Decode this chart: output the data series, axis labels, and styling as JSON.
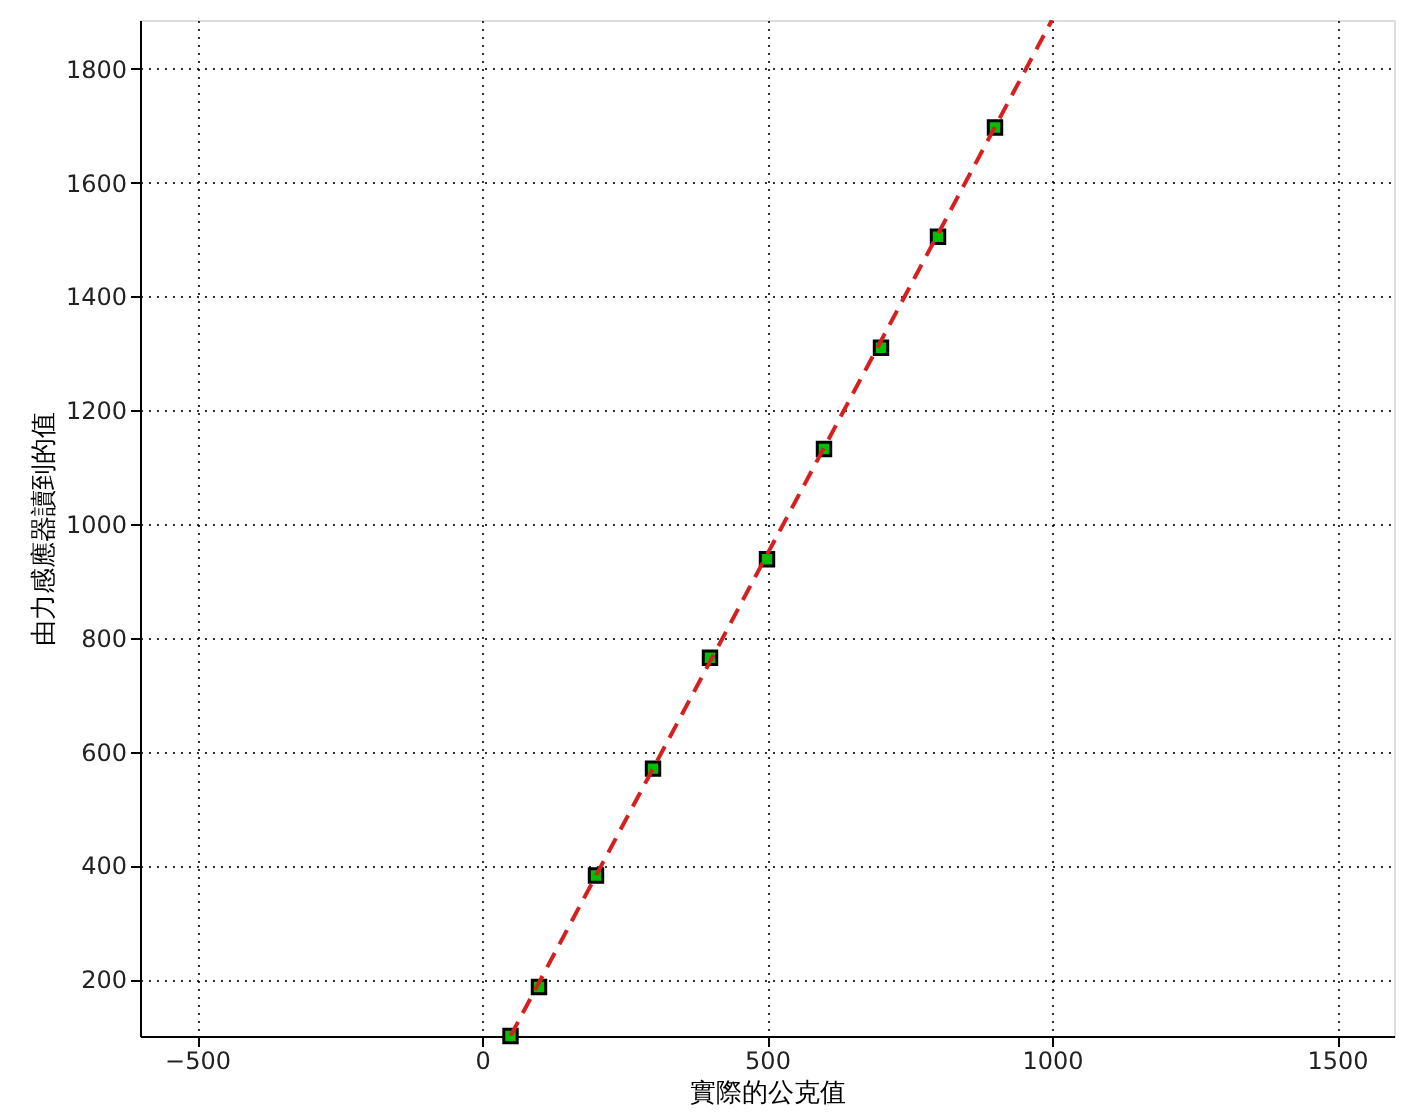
{
  "chart_data": {
    "type": "scatter",
    "xlabel": "實際的公克值",
    "ylabel": "由力感應器讀到的值",
    "xlim": [
      -600,
      1600
    ],
    "xticks": [
      -500,
      0,
      500,
      1000,
      1500
    ],
    "ylim": [
      100,
      1886
    ],
    "yticks": [
      200,
      400,
      600,
      800,
      1000,
      1200,
      1400,
      1600,
      1800
    ],
    "grid": true,
    "series": [
      {
        "marker": "square",
        "color": "#00c000",
        "x": [
          50,
          100,
          200,
          300,
          400,
          500,
          600,
          700,
          800,
          900
        ],
        "values": [
          100,
          186,
          382,
          570,
          765,
          938,
          1132,
          1310,
          1505,
          1697
        ]
      },
      {
        "type": "line",
        "color": "#d62020",
        "line_style": "dashed",
        "x": [
          50,
          1000
        ],
        "values": [
          100,
          1886
        ]
      }
    ]
  }
}
